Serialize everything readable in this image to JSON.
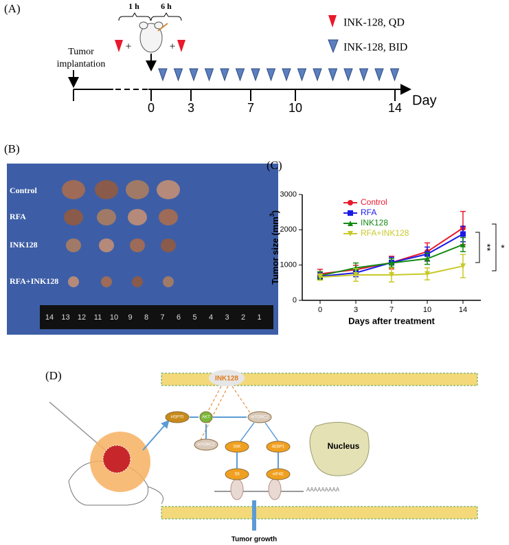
{
  "panel_a": {
    "label": "(A)",
    "interval_1": "1 h",
    "interval_2": "6 h",
    "plus": "+",
    "event": [
      "Tumor",
      "implantation"
    ],
    "legend": [
      "INK-128, QD",
      "INK-128, BID"
    ],
    "ticks": [
      "0",
      "3",
      "7",
      "10",
      "14"
    ],
    "axis_label": "Day"
  },
  "panel_b": {
    "label": "(B)",
    "groups": [
      "Control",
      "RFA",
      "INK128",
      "RFA+INK128"
    ],
    "ruler": [
      "14",
      "13",
      "12",
      "11",
      "10",
      "9",
      "8",
      "7",
      "6",
      "5",
      "4",
      "3",
      "2",
      "1"
    ]
  },
  "chart_data": {
    "type": "line",
    "panel_label": "(C)",
    "x_label": "Days after treatment",
    "y_label": {
      "text": "Tumor size (mm",
      "superscript": "3",
      "suffix": ")"
    },
    "categories": [
      "0",
      "3",
      "7",
      "10",
      "14"
    ],
    "ylim": [
      0,
      3000
    ],
    "yticks": [
      0,
      1000,
      2000,
      3000
    ],
    "series": [
      {
        "name": "Control",
        "color": "#e8192c",
        "marker": "circle",
        "values": [
          750,
          870,
          1070,
          1380,
          2050
        ],
        "errors": [
          130,
          120,
          180,
          250,
          470
        ]
      },
      {
        "name": "RFA",
        "color": "#1a1ae6",
        "marker": "square",
        "values": [
          680,
          780,
          1070,
          1310,
          1880
        ],
        "errors": [
          100,
          110,
          150,
          200,
          220
        ]
      },
      {
        "name": "INK128",
        "color": "#138a13",
        "marker": "triangle-up",
        "values": [
          700,
          920,
          1060,
          1180,
          1580
        ],
        "errors": [
          110,
          140,
          120,
          160,
          200
        ]
      },
      {
        "name": "RFA+INK128",
        "color": "#c9c92a",
        "marker": "triangle-down",
        "values": [
          660,
          720,
          720,
          750,
          970
        ],
        "errors": [
          90,
          180,
          200,
          170,
          330
        ]
      }
    ],
    "annotations": [
      "**",
      "*"
    ]
  },
  "panel_d": {
    "label": "(D)",
    "drug": "INK128",
    "nodes": [
      "HSP70",
      "AKT",
      "mTORC2",
      "mTORC1",
      "S6K",
      "4EBP1",
      "S6",
      "eIF4E"
    ],
    "nucleus": "Nucleus",
    "poly_a": "AAAAAAAAA",
    "outcome": "Tumor growth"
  }
}
